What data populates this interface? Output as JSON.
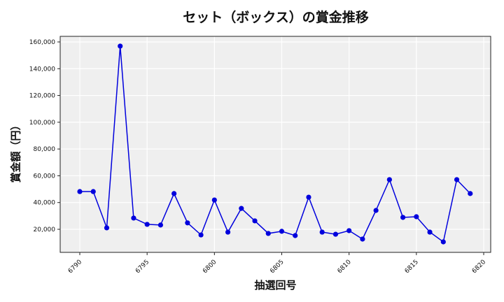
{
  "chart_data": {
    "type": "line",
    "title": "セット（ボックス）の賞金推移",
    "xlabel": "抽選回号",
    "ylabel": "賞金額（円）",
    "x": [
      6790,
      6791,
      6792,
      6793,
      6794,
      6795,
      6796,
      6797,
      6798,
      6799,
      6800,
      6801,
      6802,
      6803,
      6804,
      6805,
      6806,
      6807,
      6808,
      6809,
      6810,
      6811,
      6812,
      6813,
      6814,
      6815,
      6816,
      6817,
      6818,
      6819
    ],
    "series": [
      {
        "name": "賞金額",
        "color": "#0000dd",
        "values": [
          48200,
          48200,
          21100,
          156900,
          28400,
          23700,
          23200,
          46700,
          24800,
          15800,
          41900,
          17900,
          35600,
          26300,
          16900,
          18500,
          15300,
          44000,
          17900,
          16300,
          19000,
          12700,
          34100,
          57100,
          28900,
          29400,
          17900,
          10600,
          57100,
          46700
        ]
      }
    ],
    "xticks": [
      6790,
      6795,
      6800,
      6805,
      6810,
      6815,
      6820
    ],
    "yticks": [
      20000,
      40000,
      60000,
      80000,
      100000,
      120000,
      140000,
      160000
    ],
    "ytick_labels": [
      "20,000",
      "40,000",
      "60,000",
      "80,000",
      "100,000",
      "120,000",
      "140,000",
      "160,000"
    ],
    "xlim": [
      6788.5,
      6820.5
    ],
    "ylim": [
      2600,
      164000
    ],
    "grid": true,
    "legend": "none",
    "colors": {
      "line": "#0000dd",
      "plot_bg": "#efefef",
      "grid": "#ffffff"
    }
  }
}
